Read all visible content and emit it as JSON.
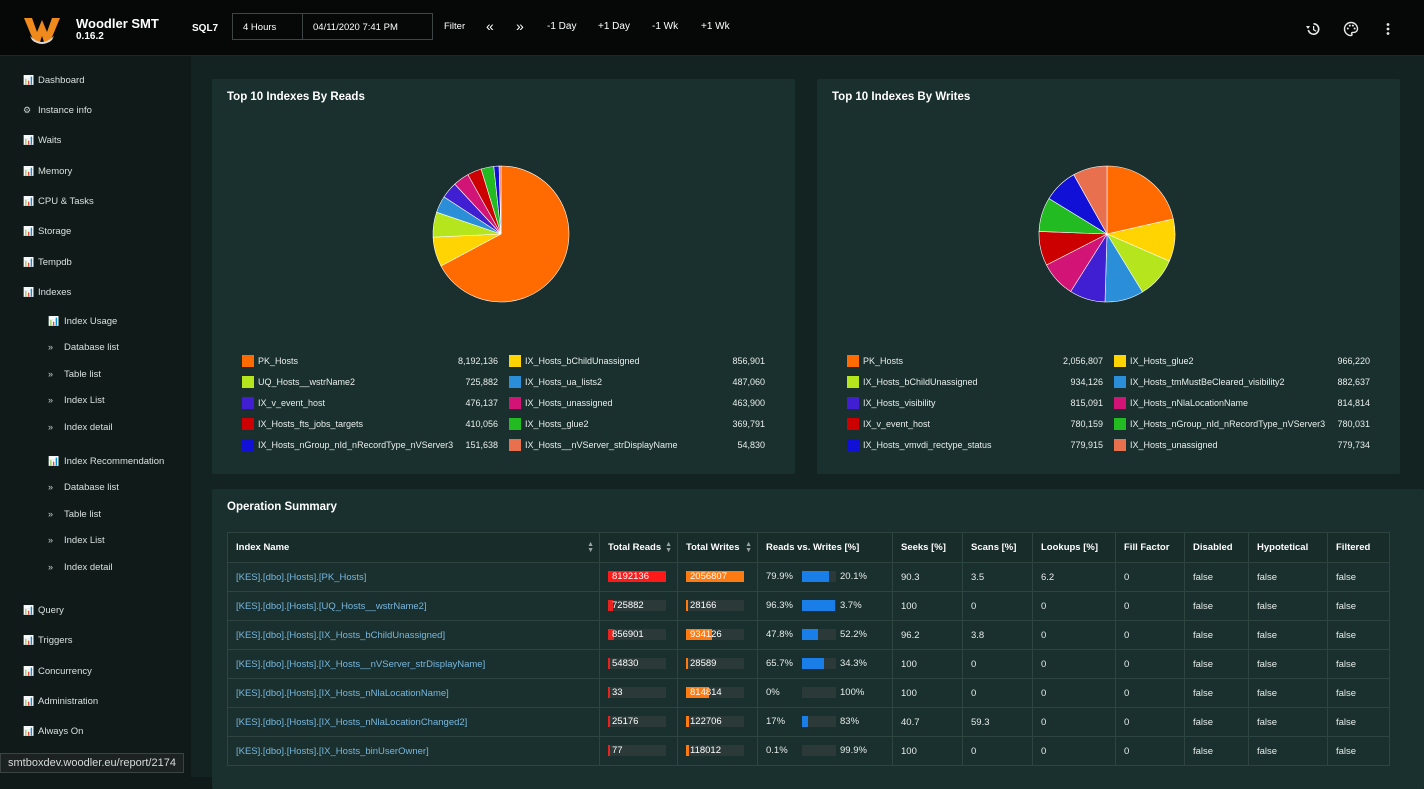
{
  "app": {
    "name": "Woodler SMT",
    "version": "0.16.2",
    "server": "SQL7"
  },
  "toolbar": {
    "range": "4 Hours",
    "datetime": "04/11/2020 7:41 PM",
    "filter": "Filter",
    "prev": "«",
    "next": "»",
    "minus_day": "-1 Day",
    "plus_day": "+1 Day",
    "minus_week": "-1 Wk",
    "plus_week": "+1 Wk"
  },
  "icons": {
    "history": "history-icon",
    "palette": "palette-icon",
    "more": "more-vert-icon"
  },
  "sidebar": {
    "items": [
      "Dashboard",
      "Instance info",
      "Waits",
      "Memory",
      "CPU & Tasks",
      "Storage",
      "Tempdb",
      "Indexes",
      "Query",
      "Triggers",
      "Concurrency",
      "Administration",
      "Always On"
    ],
    "usage": [
      "Index Usage",
      "Database list",
      "Table list",
      "Index List",
      "Index detail"
    ],
    "recommendation": [
      "Index Recommendation",
      "Database list",
      "Table list",
      "Index List",
      "Index detail"
    ]
  },
  "reads_chart": {
    "title": "Top 10 Indexes By Reads",
    "chart_data": {
      "type": "pie",
      "labels": [
        "PK_Hosts",
        "UQ_Hosts__wstrName2",
        "IX_v_event_host",
        "IX_Hosts_fts_jobs_targets",
        "IX_Hosts_nGroup_nId_nRecordType_nVServer3",
        "IX_Hosts_bChildUnassigned",
        "IX_Hosts_ua_lists2",
        "IX_Hosts_unassigned",
        "IX_Hosts_glue2",
        "IX_Hosts__nVServer_strDisplayName"
      ],
      "values": [
        8192136,
        725882,
        476137,
        410056,
        151638,
        856901,
        487060,
        463900,
        369791,
        54830
      ],
      "values_text": [
        "8,192,136",
        "725,882",
        "476,137",
        "410,056",
        "151,638",
        "856,901",
        "487,060",
        "463,900",
        "369,791",
        "54,830"
      ],
      "colors": [
        "#ff6b00",
        "#b5e61d",
        "#3f1fd1",
        "#cc0000",
        "#1010d6",
        "#ffd400",
        "#2a8fd8",
        "#d11475",
        "#22bb22",
        "#e8704f"
      ],
      "slice_order": [
        0,
        5,
        1,
        6,
        2,
        7,
        3,
        8,
        4,
        9
      ]
    }
  },
  "writes_chart": {
    "title": "Top 10 Indexes By Writes",
    "chart_data": {
      "type": "pie",
      "labels": [
        "PK_Hosts",
        "IX_Hosts_bChildUnassigned",
        "IX_Hosts_visibility",
        "IX_v_event_host",
        "IX_Hosts_vmvdi_rectype_status",
        "IX_Hosts_glue2",
        "IX_Hosts_tmMustBeCleared_visibility2",
        "IX_Hosts_nNlaLocationName",
        "IX_Hosts_nGroup_nId_nRecordType_nVServer3",
        "IX_Hosts_unassigned"
      ],
      "values": [
        2056807,
        934126,
        815091,
        780159,
        779915,
        966220,
        882637,
        814814,
        780031,
        779734
      ],
      "values_text": [
        "2,056,807",
        "934,126",
        "815,091",
        "780,159",
        "779,915",
        "966,220",
        "882,637",
        "814,814",
        "780,031",
        "779,734"
      ],
      "colors": [
        "#ff6b00",
        "#b5e61d",
        "#3f1fd1",
        "#cc0000",
        "#1010d6",
        "#ffd400",
        "#2a8fd8",
        "#d11475",
        "#22bb22",
        "#e8704f"
      ],
      "slice_order": [
        0,
        5,
        1,
        6,
        2,
        7,
        3,
        8,
        4,
        9
      ]
    }
  },
  "summary": {
    "title": "Operation Summary",
    "columns": [
      "Index Name",
      "Total Reads",
      "Total Writes",
      "Reads vs. Writes [%]",
      "Seeks [%]",
      "Scans [%]",
      "Lookups [%]",
      "Fill Factor",
      "Disabled",
      "Hypotetical",
      "Filtered"
    ],
    "rows": [
      {
        "name": "[KES].[dbo].[Hosts].[PK_Hosts]",
        "reads": "8192136",
        "reads_frac": 1.0,
        "writes": "2056807",
        "writes_frac": 1.0,
        "rp": "79.9%",
        "wp": "20.1%",
        "ratio": 0.799,
        "seeks": "90.3",
        "scans": "3.5",
        "lookups": "6.2",
        "fill": "0",
        "disabled": "false",
        "hypo": "false",
        "filtered": "false"
      },
      {
        "name": "[KES].[dbo].[Hosts].[UQ_Hosts__wstrName2]",
        "reads": "725882",
        "reads_frac": 0.09,
        "writes": "28166",
        "writes_frac": 0.014,
        "rp": "96.3%",
        "wp": "3.7%",
        "ratio": 0.963,
        "seeks": "100",
        "scans": "0",
        "lookups": "0",
        "fill": "0",
        "disabled": "false",
        "hypo": "false",
        "filtered": "false"
      },
      {
        "name": "[KES].[dbo].[Hosts].[IX_Hosts_bChildUnassigned]",
        "reads": "856901",
        "reads_frac": 0.105,
        "writes": "934126",
        "writes_frac": 0.454,
        "rp": "47.8%",
        "wp": "52.2%",
        "ratio": 0.478,
        "seeks": "96.2",
        "scans": "3.8",
        "lookups": "0",
        "fill": "0",
        "disabled": "false",
        "hypo": "false",
        "filtered": "false"
      },
      {
        "name": "[KES].[dbo].[Hosts].[IX_Hosts__nVServer_strDisplayName]",
        "reads": "54830",
        "reads_frac": 0.007,
        "writes": "28589",
        "writes_frac": 0.014,
        "rp": "65.7%",
        "wp": "34.3%",
        "ratio": 0.657,
        "seeks": "100",
        "scans": "0",
        "lookups": "0",
        "fill": "0",
        "disabled": "false",
        "hypo": "false",
        "filtered": "false"
      },
      {
        "name": "[KES].[dbo].[Hosts].[IX_Hosts_nNlaLocationName]",
        "reads": "33",
        "reads_frac": 0.0,
        "writes": "814814",
        "writes_frac": 0.396,
        "rp": "0%",
        "wp": "100%",
        "ratio": 0.0,
        "seeks": "100",
        "scans": "0",
        "lookups": "0",
        "fill": "0",
        "disabled": "false",
        "hypo": "false",
        "filtered": "false"
      },
      {
        "name": "[KES].[dbo].[Hosts].[IX_Hosts_nNlaLocationChanged2]",
        "reads": "25176",
        "reads_frac": 0.003,
        "writes": "122706",
        "writes_frac": 0.06,
        "rp": "17%",
        "wp": "83%",
        "ratio": 0.17,
        "seeks": "40.7",
        "scans": "59.3",
        "lookups": "0",
        "fill": "0",
        "disabled": "false",
        "hypo": "false",
        "filtered": "false"
      },
      {
        "name": "[KES].[dbo].[Hosts].[IX_Hosts_binUserOwner]",
        "reads": "77",
        "reads_frac": 0.0,
        "writes": "118012",
        "writes_frac": 0.057,
        "rp": "0.1%",
        "wp": "99.9%",
        "ratio": 0.001,
        "seeks": "100",
        "scans": "0",
        "lookups": "0",
        "fill": "0",
        "disabled": "false",
        "hypo": "false",
        "filtered": "false"
      }
    ]
  },
  "status_url": "smtboxdev.woodler.eu/report/2174"
}
